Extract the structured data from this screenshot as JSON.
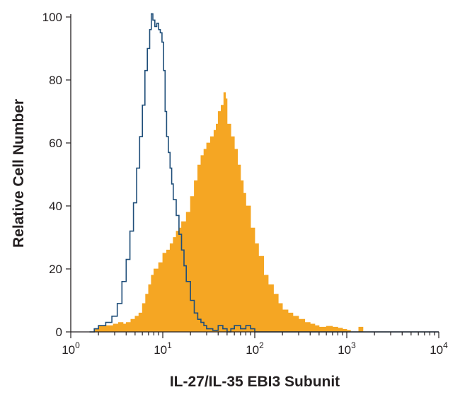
{
  "chart_data": {
    "type": "histogram",
    "title": "",
    "xlabel": "IL-27/IL-35 EBI3 Subunit",
    "ylabel": "Relative Cell Number",
    "x_scale": "log",
    "xlim": [
      1,
      10000
    ],
    "ylim": [
      0,
      100
    ],
    "x_ticks": [
      {
        "value": 1,
        "base": "10",
        "exp": "0"
      },
      {
        "value": 10,
        "base": "10",
        "exp": "1"
      },
      {
        "value": 100,
        "base": "10",
        "exp": "2"
      },
      {
        "value": 1000,
        "base": "10",
        "exp": "3"
      },
      {
        "value": 10000,
        "base": "10",
        "exp": "4"
      }
    ],
    "y_ticks": [
      {
        "value": 0,
        "label": "0"
      },
      {
        "value": 20,
        "label": "20"
      },
      {
        "value": 40,
        "label": "40"
      },
      {
        "value": 60,
        "label": "60"
      },
      {
        "value": 80,
        "label": "80"
      },
      {
        "value": 100,
        "label": "100"
      }
    ],
    "grid": false,
    "legend": "none",
    "series": [
      {
        "style": "filled",
        "color": "#f5a623",
        "points": [
          [
            1.6,
            0
          ],
          [
            1.8,
            1
          ],
          [
            2.0,
            2
          ],
          [
            2.3,
            2
          ],
          [
            2.6,
            2
          ],
          [
            2.9,
            2.5
          ],
          [
            3.3,
            3
          ],
          [
            3.7,
            2.5
          ],
          [
            4.0,
            3
          ],
          [
            4.5,
            4
          ],
          [
            5.0,
            5
          ],
          [
            5.5,
            6
          ],
          [
            6.0,
            9
          ],
          [
            6.5,
            12
          ],
          [
            7.0,
            15
          ],
          [
            7.5,
            18
          ],
          [
            8.0,
            20
          ],
          [
            9.0,
            22
          ],
          [
            10,
            25
          ],
          [
            11,
            26
          ],
          [
            12,
            28
          ],
          [
            13,
            30
          ],
          [
            14,
            32
          ],
          [
            15,
            33
          ],
          [
            16,
            35
          ],
          [
            18,
            38
          ],
          [
            20,
            43
          ],
          [
            22,
            48
          ],
          [
            24,
            53
          ],
          [
            26,
            56
          ],
          [
            28,
            58
          ],
          [
            30,
            60
          ],
          [
            33,
            62
          ],
          [
            36,
            64
          ],
          [
            38,
            66
          ],
          [
            40,
            70
          ],
          [
            43,
            72
          ],
          [
            46,
            76
          ],
          [
            48,
            74
          ],
          [
            50,
            66
          ],
          [
            55,
            62
          ],
          [
            60,
            58
          ],
          [
            65,
            53
          ],
          [
            70,
            48
          ],
          [
            75,
            44
          ],
          [
            80,
            40
          ],
          [
            90,
            33
          ],
          [
            100,
            28
          ],
          [
            110,
            24
          ],
          [
            125,
            18
          ],
          [
            140,
            15
          ],
          [
            160,
            12
          ],
          [
            180,
            9
          ],
          [
            200,
            7
          ],
          [
            230,
            6
          ],
          [
            260,
            5
          ],
          [
            300,
            4
          ],
          [
            350,
            3
          ],
          [
            400,
            2.5
          ],
          [
            450,
            2
          ],
          [
            500,
            1.5
          ],
          [
            600,
            1.8
          ],
          [
            700,
            1.5
          ],
          [
            800,
            1.2
          ],
          [
            900,
            0.8
          ],
          [
            1000,
            0.5
          ],
          [
            1100,
            0
          ],
          [
            1300,
            0
          ],
          [
            1350,
            1.5
          ],
          [
            1450,
            1.5
          ],
          [
            1500,
            0
          ],
          [
            10000,
            0
          ]
        ]
      },
      {
        "style": "outline",
        "color": "#1f4e79",
        "points": [
          [
            1.6,
            0
          ],
          [
            1.8,
            1
          ],
          [
            2.0,
            2
          ],
          [
            2.4,
            3
          ],
          [
            2.8,
            5
          ],
          [
            3.2,
            9
          ],
          [
            3.6,
            16
          ],
          [
            4.0,
            23
          ],
          [
            4.4,
            32
          ],
          [
            4.8,
            41
          ],
          [
            5.2,
            52
          ],
          [
            5.6,
            62
          ],
          [
            6.0,
            72
          ],
          [
            6.4,
            83
          ],
          [
            6.8,
            90
          ],
          [
            7.2,
            96
          ],
          [
            7.5,
            101
          ],
          [
            7.8,
            99
          ],
          [
            8.2,
            97
          ],
          [
            8.6,
            98
          ],
          [
            9.0,
            96
          ],
          [
            9.4,
            95
          ],
          [
            9.8,
            92
          ],
          [
            10.2,
            83
          ],
          [
            10.6,
            70
          ],
          [
            11.0,
            62
          ],
          [
            11.5,
            57
          ],
          [
            12,
            52
          ],
          [
            12.5,
            47
          ],
          [
            13,
            42
          ],
          [
            14,
            37
          ],
          [
            15,
            31
          ],
          [
            16,
            26
          ],
          [
            17,
            21
          ],
          [
            18,
            16
          ],
          [
            20,
            10
          ],
          [
            22,
            6
          ],
          [
            24,
            4
          ],
          [
            26,
            3
          ],
          [
            28,
            2
          ],
          [
            30,
            1
          ],
          [
            35,
            0.5
          ],
          [
            40,
            2
          ],
          [
            45,
            1
          ],
          [
            50,
            0
          ],
          [
            55,
            1
          ],
          [
            60,
            2
          ],
          [
            70,
            1
          ],
          [
            80,
            2
          ],
          [
            90,
            1
          ],
          [
            100,
            0
          ],
          [
            10000,
            0
          ]
        ]
      }
    ]
  }
}
